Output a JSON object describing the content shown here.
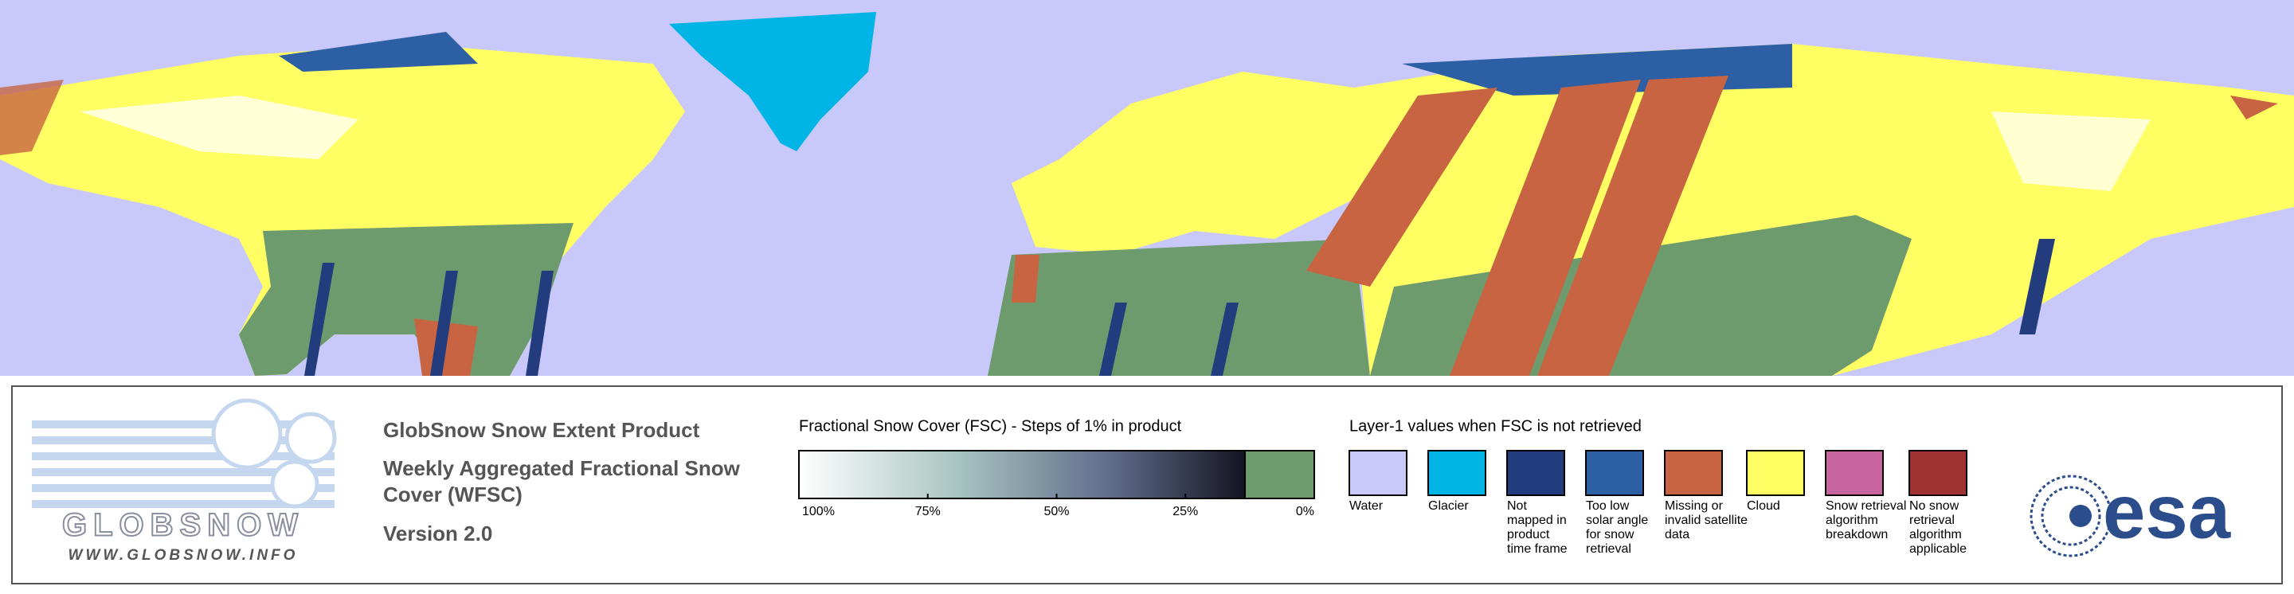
{
  "product": {
    "logo_name": "GLOBSNOW",
    "url": "WWW.GLOBSNOW.INFO",
    "title": "GlobSnow Snow Extent Product",
    "subtitle_lines": [
      "Weekly Aggregated Fractional Snow",
      "Cover (WFSC)"
    ],
    "version": "Version 2.0"
  },
  "fsc_scale": {
    "title": "Fractional Snow Cover (FSC) - Steps of 1% in product",
    "ticks": [
      "100%",
      "75%",
      "50%",
      "25%",
      "0%"
    ]
  },
  "layer1": {
    "title": "Layer-1 values when FSC is not retrieved",
    "items": [
      {
        "color": "#c8c8fa",
        "lines": [
          "Water"
        ]
      },
      {
        "color": "#00b4e6",
        "lines": [
          "Glacier"
        ]
      },
      {
        "color": "#233c7d",
        "lines": [
          "Not",
          "mapped in",
          "product",
          "time frame"
        ]
      },
      {
        "color": "#2d5fa5",
        "lines": [
          "Too low",
          "solar angle",
          "for snow",
          "retrieval"
        ]
      },
      {
        "color": "#c86441",
        "lines": [
          "Missing or",
          "invalid satellite",
          "data"
        ]
      },
      {
        "color": "#ffff64",
        "lines": [
          "Cloud"
        ]
      },
      {
        "color": "#c864a0",
        "lines": [
          "Snow retrieval",
          "algorithm",
          "breakdown"
        ]
      },
      {
        "color": "#a03232",
        "lines": [
          "No snow",
          "retrieval",
          "algorithm",
          "applicable"
        ]
      }
    ]
  },
  "agency": {
    "logo_text": "esa"
  }
}
